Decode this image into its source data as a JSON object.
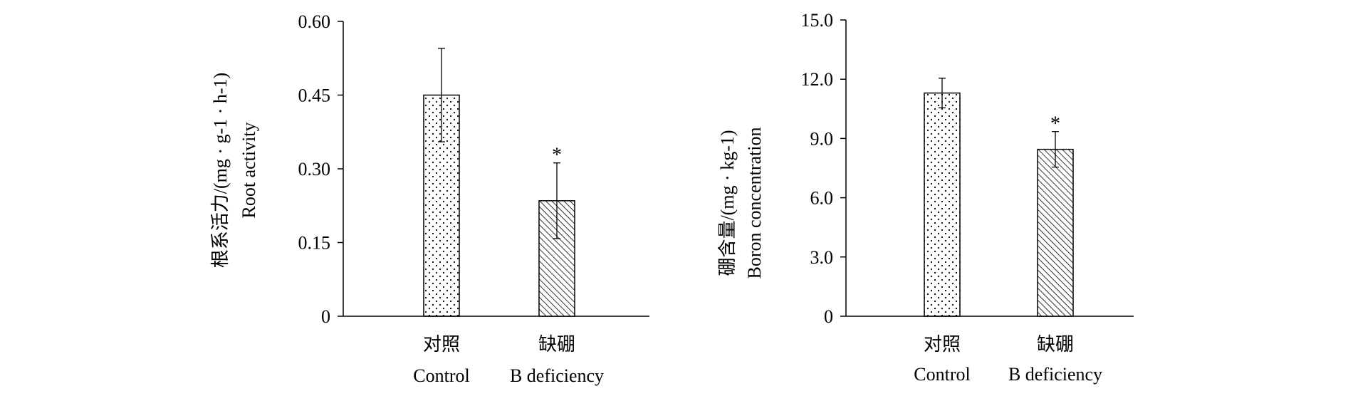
{
  "chart_data": [
    {
      "type": "bar",
      "categories": [
        "对照",
        "缺硼"
      ],
      "category_sublabels": [
        "Control",
        "B  deficiency"
      ],
      "values": [
        0.45,
        0.235
      ],
      "error": [
        0.095,
        0.077
      ],
      "significance": [
        "",
        "*"
      ],
      "ylabel_cn": "根系活力/(mg · g-1 · h-1)",
      "ylabel_en": "Root activity",
      "ylim": [
        0,
        0.6
      ],
      "yticks": [
        0,
        0.15,
        0.3,
        0.45,
        0.6
      ],
      "ytick_labels": [
        "0",
        "0.15",
        "0.30",
        "0.45",
        "0.60"
      ],
      "patterns": [
        "dots",
        "diagonal-hatch"
      ],
      "grid": false
    },
    {
      "type": "bar",
      "categories": [
        "对照",
        "缺硼"
      ],
      "category_sublabels": [
        "Control",
        "B  deficiency"
      ],
      "values": [
        11.3,
        8.45
      ],
      "error": [
        0.75,
        0.9
      ],
      "significance": [
        "",
        "*"
      ],
      "ylabel_cn": "硼含量/(mg · kg-1)",
      "ylabel_en": "Boron concentration",
      "ylim": [
        0,
        15
      ],
      "yticks": [
        0,
        3,
        6,
        9,
        12,
        15
      ],
      "ytick_labels": [
        "0",
        "3.0",
        "6.0",
        "9.0",
        "12.0",
        "15.0"
      ],
      "patterns": [
        "dots",
        "diagonal-hatch"
      ],
      "grid": false
    }
  ]
}
